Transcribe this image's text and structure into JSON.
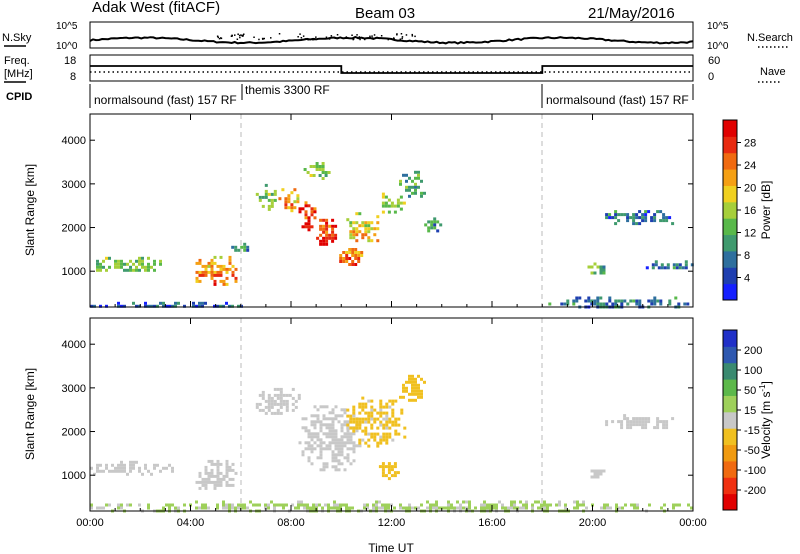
{
  "header": {
    "site": "Adak West (fitACF)",
    "beam": "Beam 03",
    "date": "21/May/2016"
  },
  "top_panel": {
    "left_label": "N.Sky",
    "right_label": "N.Search",
    "tick_high": "10^5",
    "tick_low": "10^0"
  },
  "freq_panel": {
    "left_label": "Freq.",
    "left_unit": "[MHz]",
    "left_ticks": [
      "18",
      "8"
    ],
    "right_label": "Nave",
    "right_ticks": [
      "60",
      "0"
    ]
  },
  "cpid": {
    "label": "CPID",
    "segments": [
      {
        "name": "normalsound (fast) 157 RF",
        "start_hour": 0,
        "end_hour": 6
      },
      {
        "name": "themis 3300 RF",
        "start_hour": 6,
        "end_hour": 18
      },
      {
        "name": "normalsound (fast) 157 RF",
        "start_hour": 18,
        "end_hour": 24
      }
    ]
  },
  "power_colorbar": {
    "title": "Power [dB]",
    "ticks": [
      "4",
      "8",
      "12",
      "16",
      "20",
      "24",
      "28"
    ],
    "colors": [
      "#1520ff",
      "#1f3fb0",
      "#2e6f9e",
      "#3f9a6e",
      "#58b84a",
      "#a6cf3a",
      "#f0d020",
      "#f5a014",
      "#f06a10",
      "#e82a10",
      "#e00000"
    ]
  },
  "velocity_colorbar": {
    "title": "Velocity [m s",
    "title_sup": "-1",
    "title_end": "]",
    "ticks": [
      "200",
      "100",
      "50",
      "15",
      "-15",
      "-50",
      "-100",
      "-200"
    ],
    "colors": [
      "#2030c8",
      "#2e58b0",
      "#3a8a70",
      "#5cb84a",
      "#9ed05a",
      "#c8c8c8",
      "#f0c020",
      "#f09a10",
      "#f06a10",
      "#f03010",
      "#e00000"
    ]
  },
  "chart_data": {
    "type": "heatmap",
    "x_axis": {
      "label": "Time UT",
      "ticks": [
        "00:00",
        "04:00",
        "08:00",
        "12:00",
        "16:00",
        "20:00",
        "00:00"
      ],
      "range_hours": [
        0,
        24
      ]
    },
    "panels": [
      {
        "name": "power",
        "ylabel": "Slant Range [km]",
        "yticks": [
          "1000",
          "2000",
          "3000",
          "4000"
        ],
        "ylim": [
          180,
          4600
        ],
        "clim": [
          0,
          30
        ],
        "regions": [
          {
            "t0": 0.0,
            "t1": 3.3,
            "r0": 1000,
            "r1": 1330,
            "p": 12
          },
          {
            "t0": 4.2,
            "t1": 5.8,
            "r0": 700,
            "r1": 1350,
            "p": 20
          },
          {
            "t0": 5.5,
            "t1": 6.5,
            "r0": 1450,
            "r1": 1650,
            "p": 8
          },
          {
            "t0": 6.6,
            "t1": 7.5,
            "r0": 2450,
            "r1": 3000,
            "p": 12
          },
          {
            "t0": 7.5,
            "t1": 8.3,
            "r0": 2400,
            "r1": 2900,
            "p": 20
          },
          {
            "t0": 8.3,
            "t1": 9.0,
            "r0": 1950,
            "r1": 2600,
            "p": 26
          },
          {
            "t0": 9.0,
            "t1": 9.8,
            "r0": 1550,
            "r1": 2200,
            "p": 26
          },
          {
            "t0": 9.8,
            "t1": 10.8,
            "r0": 1150,
            "r1": 1600,
            "p": 22
          },
          {
            "t0": 10.2,
            "t1": 11.5,
            "r0": 1700,
            "r1": 2350,
            "p": 16
          },
          {
            "t0": 11.5,
            "t1": 12.5,
            "r0": 2300,
            "r1": 2800,
            "p": 14
          },
          {
            "t0": 12.3,
            "t1": 13.3,
            "r0": 2700,
            "r1": 3300,
            "p": 10
          },
          {
            "t0": 8.5,
            "t1": 9.5,
            "r0": 3150,
            "r1": 3500,
            "p": 12
          },
          {
            "t0": 13.3,
            "t1": 14.0,
            "r0": 1900,
            "r1": 2300,
            "p": 8
          },
          {
            "t0": 20.5,
            "t1": 23.2,
            "r0": 2100,
            "r1": 2400,
            "p": 6
          },
          {
            "t0": 19.8,
            "t1": 20.5,
            "r0": 950,
            "r1": 1200,
            "p": 12
          },
          {
            "t0": 22.0,
            "t1": 24.0,
            "r0": 1050,
            "r1": 1250,
            "p": 6
          },
          {
            "t0": 18.0,
            "t1": 24.0,
            "r0": 180,
            "r1": 420,
            "p": 6
          },
          {
            "t0": 0.0,
            "t1": 6.0,
            "r0": 180,
            "r1": 300,
            "p": 4
          }
        ]
      },
      {
        "name": "velocity",
        "ylabel": "Slant Range [km]",
        "yticks": [
          "1000",
          "2000",
          "3000",
          "4000"
        ],
        "ylim": [
          180,
          4600
        ],
        "clim": [
          -200,
          200
        ],
        "regions": [
          {
            "t0": 0.0,
            "t1": 3.3,
            "r0": 1000,
            "r1": 1330,
            "v": 0
          },
          {
            "t0": 4.2,
            "t1": 5.8,
            "r0": 700,
            "r1": 1350,
            "v": 0
          },
          {
            "t0": 6.6,
            "t1": 8.3,
            "r0": 2400,
            "r1": 3000,
            "v": 0
          },
          {
            "t0": 8.3,
            "t1": 10.8,
            "r0": 1150,
            "r1": 2600,
            "v": 0
          },
          {
            "t0": 10.2,
            "t1": 12.5,
            "r0": 1700,
            "r1": 2800,
            "v": -30
          },
          {
            "t0": 12.3,
            "t1": 13.3,
            "r0": 2700,
            "r1": 3300,
            "v": -40
          },
          {
            "t0": 11.5,
            "t1": 12.3,
            "r0": 900,
            "r1": 1300,
            "v": -45
          },
          {
            "t0": 20.5,
            "t1": 23.2,
            "r0": 2100,
            "r1": 2400,
            "v": 0
          },
          {
            "t0": 19.8,
            "t1": 20.5,
            "r0": 950,
            "r1": 1200,
            "v": 0
          },
          {
            "t0": 0.0,
            "t1": 24.0,
            "r0": 180,
            "r1": 420,
            "v": 25
          }
        ]
      }
    ]
  }
}
